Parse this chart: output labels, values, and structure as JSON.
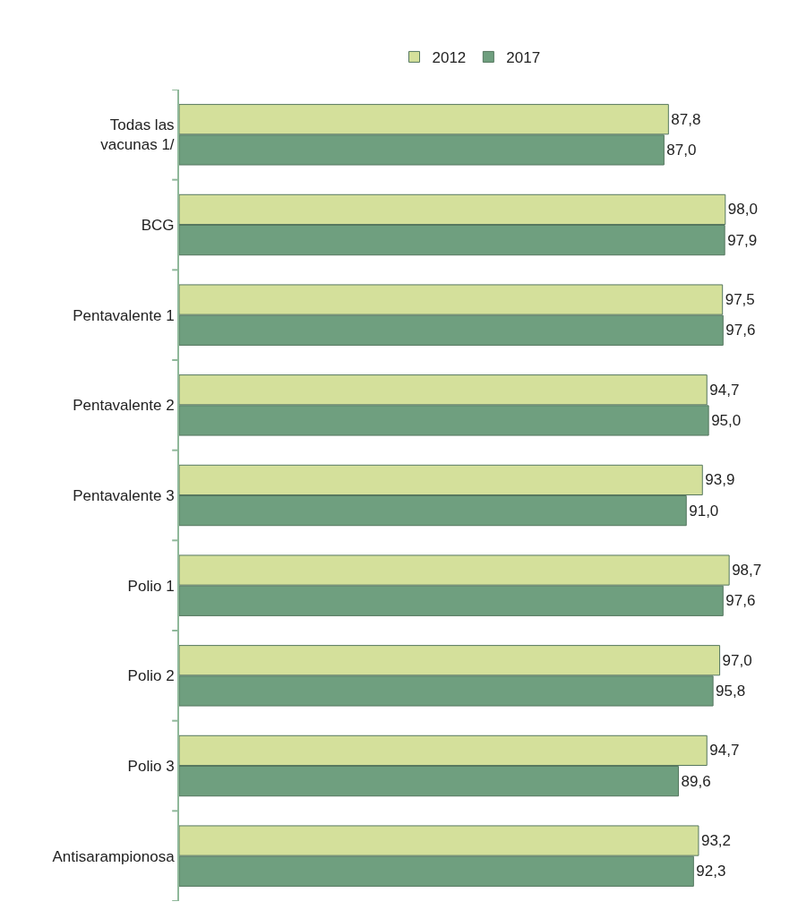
{
  "chart_data": {
    "type": "bar",
    "orientation": "horizontal",
    "categories": [
      "Todas las\nvacunas 1/",
      "BCG",
      "Pentavalente 1",
      "Pentavalente 2",
      "Pentavalente 3",
      "Polio 1",
      "Polio 2",
      "Polio 3",
      "Antisarampionosa"
    ],
    "series": [
      {
        "name": "2012",
        "color": "#d4e09b",
        "values": [
          87.8,
          98.0,
          97.5,
          94.7,
          93.9,
          98.7,
          97.0,
          94.7,
          93.2
        ],
        "value_labels": [
          "87,8",
          "98,0",
          "97,5",
          "94,7",
          "93,9",
          "98,7",
          "97,0",
          "94,7",
          "93,2"
        ]
      },
      {
        "name": "2017",
        "color": "#6f9f7f",
        "values": [
          87.0,
          97.9,
          97.6,
          95.0,
          91.0,
          97.6,
          95.8,
          89.6,
          92.3
        ],
        "value_labels": [
          "87,0",
          "97,9",
          "97,6",
          "95,0",
          "91,0",
          "97,6",
          "95,8",
          "89,6",
          "92,3"
        ]
      }
    ],
    "legend": "top",
    "grid": false
  }
}
